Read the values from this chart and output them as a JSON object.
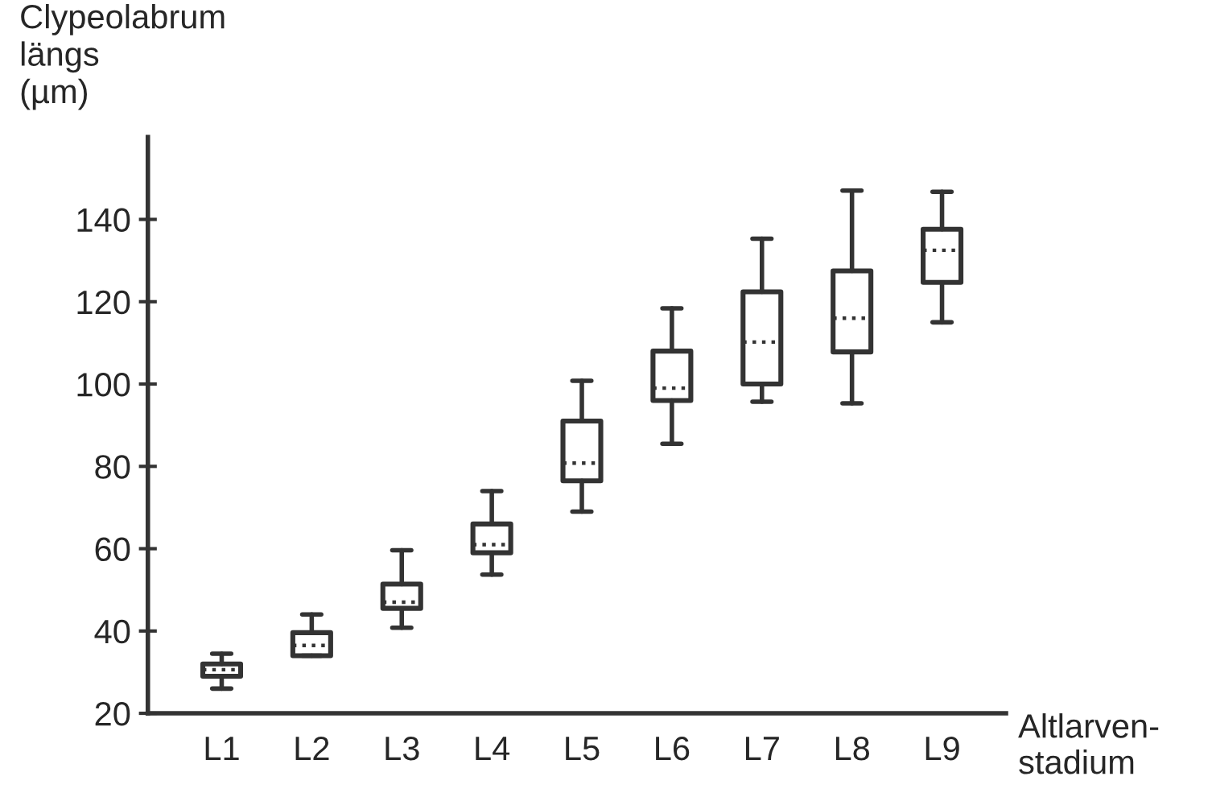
{
  "chart_data": {
    "type": "box",
    "ylabel": "Clypeolabrum\nlängs\n(µm)",
    "xlabel": "Altlarven-\nstadium",
    "categories": [
      "L1",
      "L2",
      "L3",
      "L4",
      "L5",
      "L6",
      "L7",
      "L8",
      "L9"
    ],
    "boxes": [
      {
        "low": 26,
        "q1": 29,
        "median": 30.6,
        "q3": 32,
        "high": 34.5
      },
      {
        "low": 34,
        "q1": 34,
        "median": 36.5,
        "q3": 39.6,
        "high": 44
      },
      {
        "low": 40.8,
        "q1": 45.5,
        "median": 47,
        "q3": 51.4,
        "high": 59.6
      },
      {
        "low": 53.7,
        "q1": 59,
        "median": 61,
        "q3": 66,
        "high": 74
      },
      {
        "low": 69,
        "q1": 76.5,
        "median": 80.8,
        "q3": 91,
        "high": 100.8
      },
      {
        "low": 85.5,
        "q1": 96,
        "median": 99,
        "q3": 108,
        "high": 118.4
      },
      {
        "low": 95.7,
        "q1": 100,
        "median": 110.2,
        "q3": 122.4,
        "high": 135.3
      },
      {
        "low": 95.3,
        "q1": 107.8,
        "median": 116,
        "q3": 127.5,
        "high": 147
      },
      {
        "low": 115,
        "q1": 124.7,
        "median": 132.5,
        "q3": 137.6,
        "high": 146.7
      }
    ],
    "ylim": [
      20,
      160
    ],
    "yticks": [
      20,
      40,
      60,
      80,
      100,
      120,
      140
    ],
    "line_style": "dotted",
    "grid": false
  }
}
